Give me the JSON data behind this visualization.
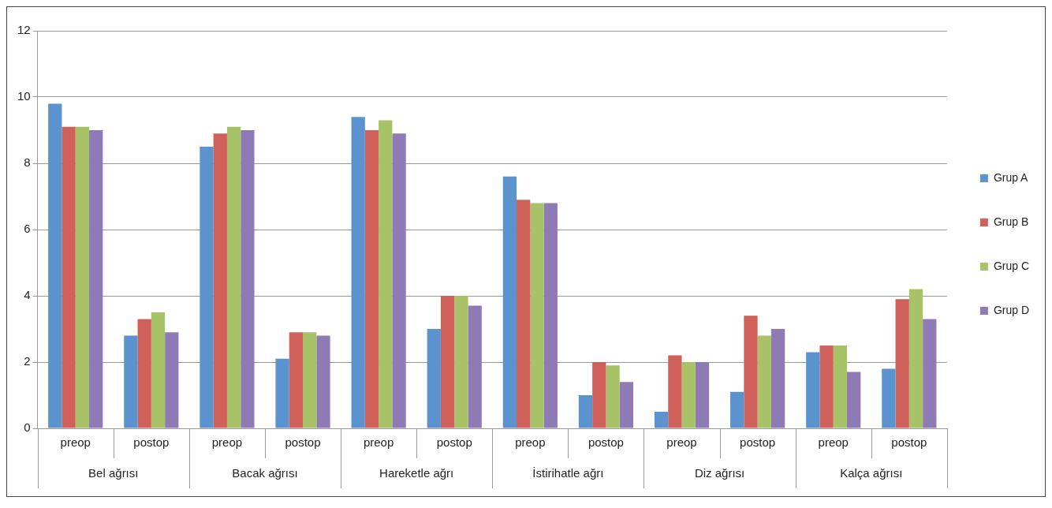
{
  "chart_data": {
    "type": "bar",
    "categories": [
      "preop",
      "postop",
      "preop",
      "postop",
      "preop",
      "postop",
      "preop",
      "postop",
      "preop",
      "postop",
      "preop",
      "postop"
    ],
    "annotations": [
      "Bel ağrısı",
      "Bacak ağrısı",
      "Hareketle ağrı",
      "İstirihatle ağrı",
      "Diz ağrısı",
      "Kalça ağrısı"
    ],
    "series": [
      {
        "name": "Grup A",
        "color": "#5b93cf",
        "values": [
          9.8,
          2.8,
          8.5,
          2.1,
          9.4,
          3.0,
          7.6,
          1.0,
          0.5,
          1.1,
          2.3,
          1.8
        ]
      },
      {
        "name": "Grup B",
        "color": "#d0605a",
        "values": [
          9.1,
          3.3,
          8.9,
          2.9,
          9.0,
          4.0,
          6.9,
          2.0,
          2.2,
          3.4,
          2.5,
          3.9
        ]
      },
      {
        "name": "Grup C",
        "color": "#a7c267",
        "values": [
          9.1,
          3.5,
          9.1,
          2.9,
          9.3,
          4.0,
          6.8,
          1.9,
          2.0,
          2.8,
          2.5,
          4.2
        ]
      },
      {
        "name": "Grup D",
        "color": "#8e7bb6",
        "values": [
          9.0,
          2.9,
          9.0,
          2.8,
          8.9,
          3.7,
          6.8,
          1.4,
          2.0,
          3.0,
          1.7,
          3.3
        ]
      }
    ],
    "ylim": [
      0,
      12
    ],
    "yticks": [
      0,
      2,
      4,
      6,
      8,
      10,
      12
    ],
    "grid": "y",
    "legend": "right"
  }
}
